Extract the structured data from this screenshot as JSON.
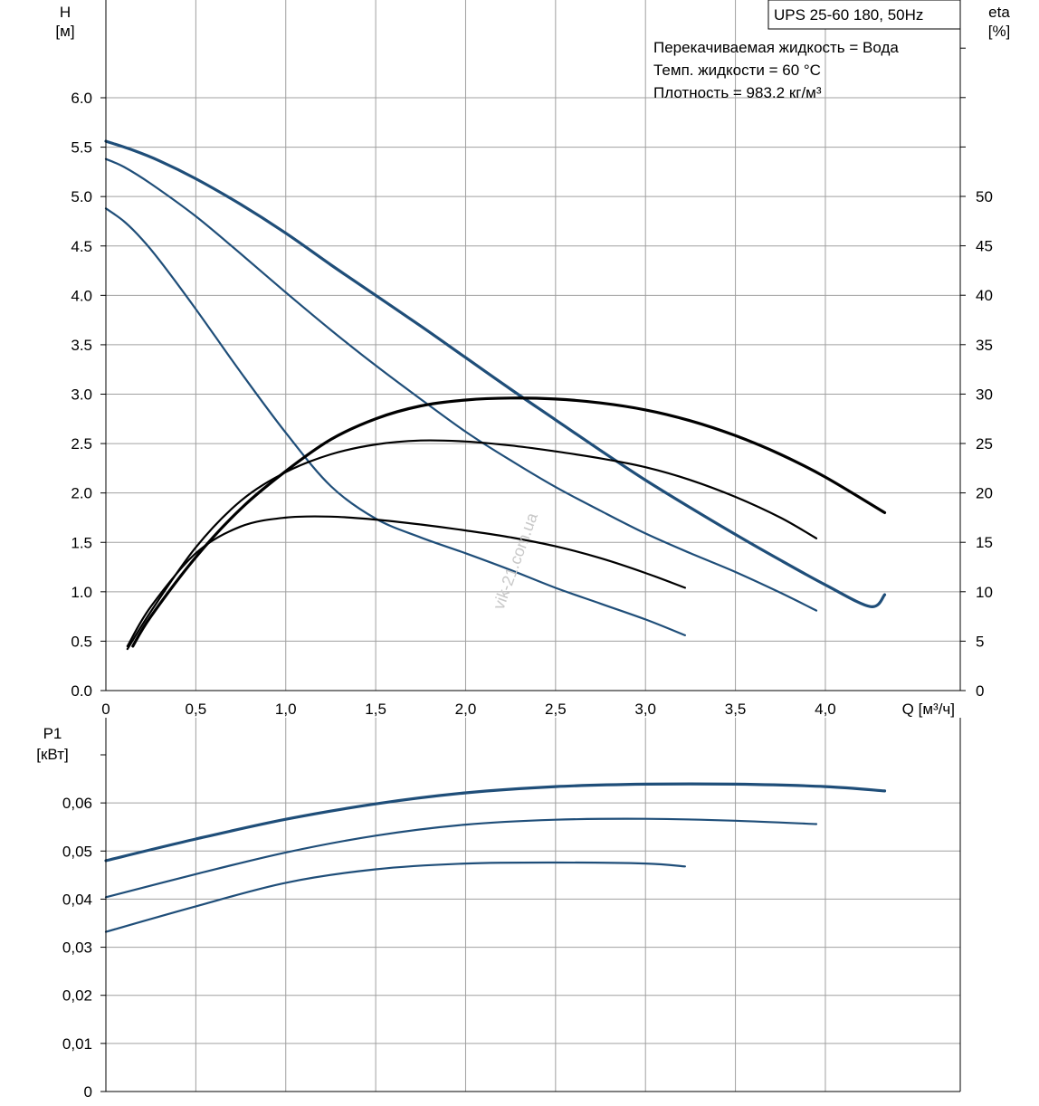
{
  "chart_data": [
    {
      "type": "line",
      "title": "UPS 25-60 180, 50Hz",
      "annotations": [
        "Перекачиваемая жидкость = Вода",
        "Темп. жидкости = 60 °C",
        "Плотность = 983.2 кг/м³"
      ],
      "xlabel": "Q [м³/ч]",
      "ylabel_left": [
        "H",
        "[м]"
      ],
      "ylabel_right": [
        "eta",
        "[%]"
      ],
      "xlim": [
        0,
        4.75
      ],
      "ylim_left": [
        0,
        6.0
      ],
      "ylim_right": [
        0,
        50
      ],
      "x_ticks": [
        "0",
        "0,5",
        "1,0",
        "1,5",
        "2,0",
        "2,5",
        "3,0",
        "3,5",
        "4,0"
      ],
      "y_ticks_left": [
        "0.0",
        "0.5",
        "1.0",
        "1.5",
        "2.0",
        "2.5",
        "3.0",
        "3.5",
        "4.0",
        "4.5",
        "5.0",
        "5.5",
        "6.0"
      ],
      "y_ticks_right": [
        "0",
        "5",
        "10",
        "15",
        "20",
        "25",
        "30",
        "35",
        "40",
        "45",
        "50"
      ],
      "grid": true,
      "colors": {
        "head": "#1f4e79",
        "eta": "#000000"
      },
      "series": [
        {
          "kind": "head",
          "axis": "left",
          "speed": 3,
          "x": [
            0,
            0.15,
            0.3,
            0.5,
            0.75,
            1.0,
            1.25,
            1.5,
            1.75,
            2.0,
            2.25,
            2.5,
            2.75,
            3.0,
            3.25,
            3.5,
            3.75,
            4.0,
            4.25,
            4.33
          ],
          "y": [
            5.56,
            5.47,
            5.36,
            5.18,
            4.92,
            4.63,
            4.31,
            4.0,
            3.69,
            3.37,
            3.05,
            2.74,
            2.43,
            2.13,
            1.85,
            1.58,
            1.32,
            1.07,
            0.85,
            0.97
          ]
        },
        {
          "kind": "head",
          "axis": "left",
          "speed": 2,
          "x": [
            0,
            0.1,
            0.25,
            0.5,
            0.75,
            1.0,
            1.25,
            1.5,
            1.75,
            2.0,
            2.25,
            2.5,
            2.75,
            3.0,
            3.25,
            3.5,
            3.75,
            3.95
          ],
          "y": [
            5.38,
            5.3,
            5.13,
            4.8,
            4.42,
            4.03,
            3.65,
            3.29,
            2.95,
            2.62,
            2.33,
            2.06,
            1.82,
            1.59,
            1.39,
            1.2,
            0.99,
            0.81
          ]
        },
        {
          "kind": "head",
          "axis": "left",
          "speed": 1,
          "x": [
            0,
            0.1,
            0.2,
            0.3,
            0.5,
            0.75,
            1.0,
            1.25,
            1.5,
            1.75,
            2.0,
            2.25,
            2.5,
            2.75,
            3.0,
            3.22
          ],
          "y": [
            4.88,
            4.75,
            4.57,
            4.35,
            3.86,
            3.22,
            2.61,
            2.07,
            1.74,
            1.55,
            1.39,
            1.22,
            1.04,
            0.88,
            0.72,
            0.56
          ]
        },
        {
          "kind": "eta",
          "axis": "right",
          "speed": 3,
          "x": [
            0.15,
            0.25,
            0.5,
            0.75,
            1.0,
            1.25,
            1.5,
            1.75,
            2.0,
            2.25,
            2.5,
            2.75,
            3.0,
            3.25,
            3.5,
            3.75,
            4.0,
            4.33
          ],
          "y": [
            4.5,
            7.5,
            13.5,
            18.4,
            22.2,
            25.4,
            27.5,
            28.8,
            29.4,
            29.6,
            29.5,
            29.1,
            28.4,
            27.3,
            25.8,
            23.9,
            21.6,
            18.0
          ]
        },
        {
          "kind": "eta",
          "axis": "right",
          "speed": 2,
          "x": [
            0.12,
            0.25,
            0.5,
            0.75,
            1.0,
            1.25,
            1.5,
            1.75,
            2.0,
            2.25,
            2.5,
            2.75,
            3.0,
            3.25,
            3.5,
            3.75,
            3.95
          ],
          "y": [
            4.2,
            8.0,
            14.5,
            19.2,
            22.1,
            23.9,
            24.9,
            25.3,
            25.2,
            24.8,
            24.2,
            23.5,
            22.6,
            21.3,
            19.6,
            17.5,
            15.4
          ]
        },
        {
          "kind": "eta",
          "axis": "right",
          "speed": 1,
          "x": [
            0.12,
            0.25,
            0.5,
            0.75,
            1.0,
            1.25,
            1.5,
            1.75,
            2.0,
            2.25,
            2.5,
            2.75,
            3.0,
            3.22
          ],
          "y": [
            4.5,
            8.5,
            13.9,
            16.6,
            17.5,
            17.6,
            17.3,
            16.8,
            16.2,
            15.5,
            14.6,
            13.4,
            11.9,
            10.4
          ]
        }
      ]
    },
    {
      "type": "line",
      "xlabel": "",
      "ylabel": [
        "P1",
        "[кВт]"
      ],
      "xlim": [
        0,
        4.75
      ],
      "ylim": [
        0,
        0.07
      ],
      "y_ticks": [
        "0",
        "0,01",
        "0,02",
        "0,03",
        "0,04",
        "0,05",
        "0,06"
      ],
      "grid": true,
      "colors": {
        "power": "#1f4e79"
      },
      "series": [
        {
          "kind": "power",
          "speed": 3,
          "x": [
            0,
            0.5,
            1.0,
            1.5,
            2.0,
            2.5,
            3.0,
            3.5,
            4.0,
            4.33
          ],
          "y": [
            0.048,
            0.0525,
            0.0566,
            0.0598,
            0.0621,
            0.0634,
            0.0639,
            0.0639,
            0.0634,
            0.0625
          ]
        },
        {
          "kind": "power",
          "speed": 2,
          "x": [
            0,
            0.5,
            1.0,
            1.5,
            2.0,
            2.5,
            3.0,
            3.5,
            3.95
          ],
          "y": [
            0.0404,
            0.0452,
            0.0497,
            0.0532,
            0.0555,
            0.0565,
            0.0567,
            0.0563,
            0.0556
          ]
        },
        {
          "kind": "power",
          "speed": 1,
          "x": [
            0,
            0.5,
            1.0,
            1.5,
            2.0,
            2.5,
            3.0,
            3.22
          ],
          "y": [
            0.0332,
            0.0385,
            0.0434,
            0.0462,
            0.0474,
            0.0476,
            0.0474,
            0.0468
          ]
        }
      ]
    }
  ],
  "watermark": "vik-21.com.ua"
}
